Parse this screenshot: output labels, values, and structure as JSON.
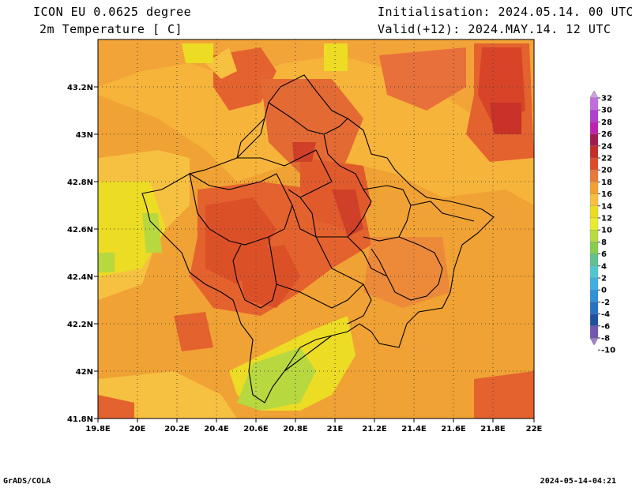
{
  "header": {
    "model": "ICON EU 0.0625 degree",
    "variable": "2m Temperature [ C]",
    "init": "Initialisation: 2024.05.14. 00 UTC",
    "valid": "Valid(+12): 2024.MAY.14. 12 UTC"
  },
  "footer": {
    "left": "GrADS/COLA",
    "right": "2024-05-14-04:21"
  },
  "map": {
    "lon_range": [
      19.8,
      22.0
    ],
    "lat_range": [
      41.8,
      43.4
    ],
    "lon_ticks": [
      "19.8E",
      "20E",
      "20.2E",
      "20.4E",
      "20.6E",
      "20.8E",
      "21E",
      "21.2E",
      "21.4E",
      "21.6E",
      "21.8E",
      "22E"
    ],
    "lat_ticks": [
      "41.8N",
      "42N",
      "42.2N",
      "42.4N",
      "42.6N",
      "42.8N",
      "43N",
      "43.2N"
    ],
    "gridlines": "dotted"
  },
  "colorbar": {
    "levels": [
      "32",
      "30",
      "28",
      "26",
      "24",
      "22",
      "20",
      "18",
      "16",
      "14",
      "12",
      "10",
      "8",
      "6",
      "4",
      "2",
      "0",
      "-2",
      "-4",
      "-6",
      "-8",
      "-10"
    ],
    "colors": [
      "#d2a0e8",
      "#c070dc",
      "#b040d0",
      "#c020b0",
      "#a01c50",
      "#c82c28",
      "#e04a2c",
      "#e67a3a",
      "#f2a030",
      "#f6c040",
      "#ecdc20",
      "#e8ec30",
      "#b8dc40",
      "#88cc50",
      "#60c090",
      "#50c8d0",
      "#40b0e0",
      "#3090d8",
      "#2870c0",
      "#2050a0",
      "#7058b0",
      "#a080d0"
    ]
  }
}
